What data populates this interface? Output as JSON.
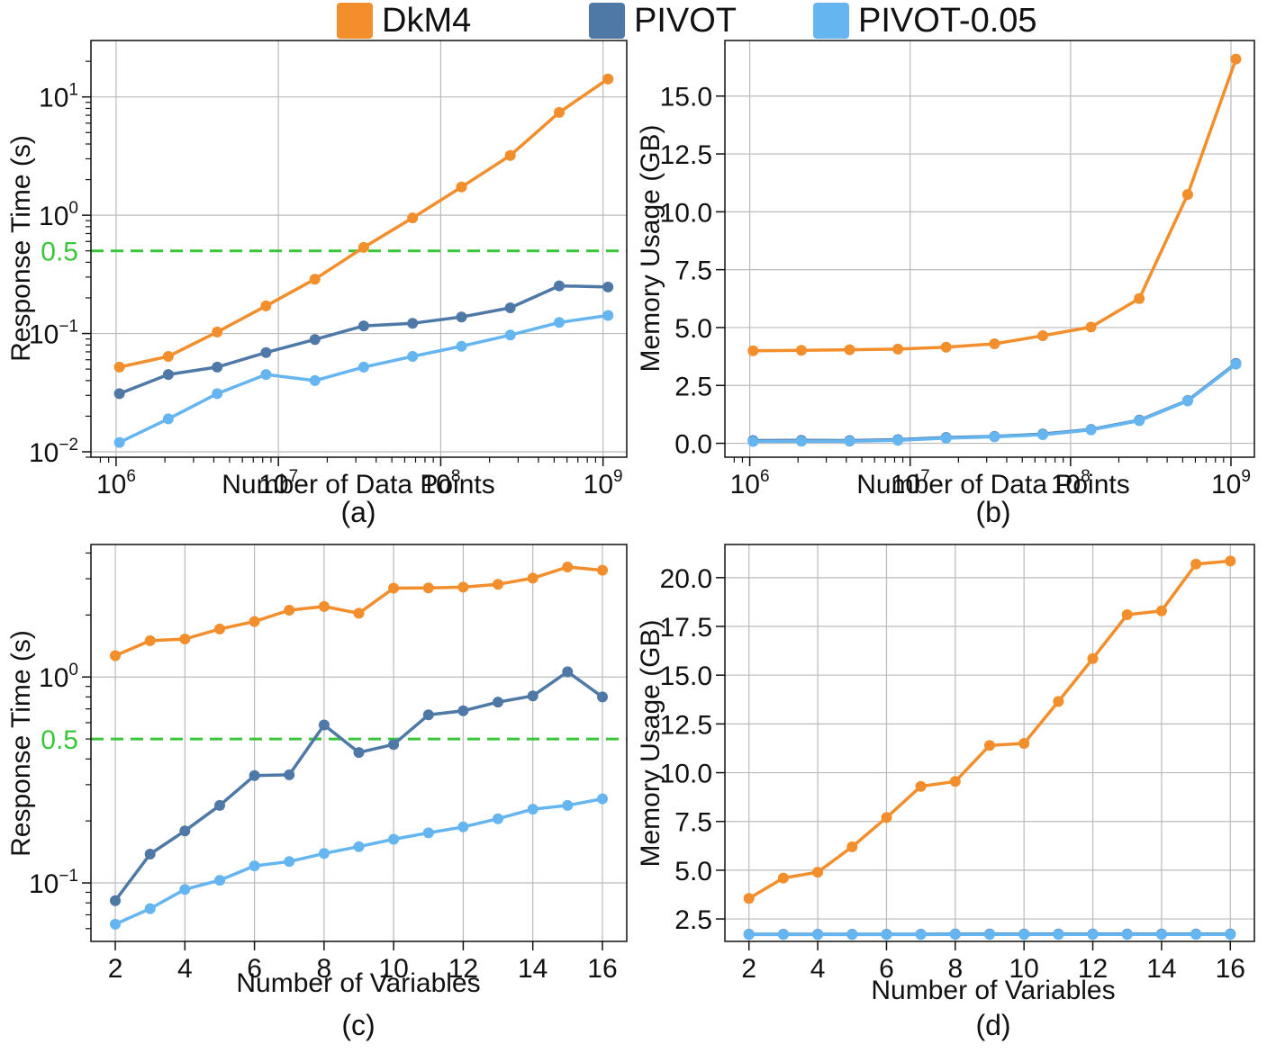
{
  "legend": {
    "items": [
      {
        "label": "DkM4",
        "color": "#f28e2b"
      },
      {
        "label": "PIVOT",
        "color": "#4e79a7"
      },
      {
        "label": "PIVOT-0.05",
        "color": "#64b5f0"
      }
    ]
  },
  "colors": {
    "threshold": "#39c639",
    "grid": "#bbbbbb",
    "axis": "#111111"
  },
  "chart_data": [
    {
      "panel": "(a)",
      "type": "line",
      "xscale": "log",
      "yscale": "log",
      "xlabel": "Number of Data Points",
      "ylabel": "Response Time (s)",
      "xlim": [
        700000,
        1400000000
      ],
      "ylim": [
        0.009,
        30
      ],
      "xticks": [
        {
          "value": 1000000,
          "base": "10",
          "exp": "6"
        },
        {
          "value": 10000000,
          "base": "10",
          "exp": "7"
        },
        {
          "value": 100000000,
          "base": "10",
          "exp": "8"
        },
        {
          "value": 1000000000,
          "base": "10",
          "exp": "9"
        }
      ],
      "yticks": [
        {
          "value": 0.01,
          "base": "10",
          "exp": "−2"
        },
        {
          "value": 0.1,
          "base": "10",
          "exp": "−1"
        },
        {
          "value": 1,
          "base": "10",
          "exp": "0"
        },
        {
          "value": 10,
          "base": "10",
          "exp": "1"
        }
      ],
      "threshold": {
        "value": 0.5,
        "label": "0.5"
      },
      "x": [
        1048576,
        2097152,
        4194304,
        8388608,
        16777216,
        33554432,
        67108864,
        134217728,
        268435456,
        536870912,
        1073741824
      ],
      "series": [
        {
          "name": "DkM4",
          "values": [
            0.052,
            0.064,
            0.103,
            0.171,
            0.288,
            0.534,
            0.95,
            1.73,
            3.2,
            7.4,
            14.2
          ]
        },
        {
          "name": "PIVOT",
          "values": [
            0.031,
            0.045,
            0.052,
            0.069,
            0.089,
            0.116,
            0.122,
            0.138,
            0.165,
            0.253,
            0.247
          ]
        },
        {
          "name": "PIVOT-0.05",
          "values": [
            0.012,
            0.019,
            0.031,
            0.045,
            0.04,
            0.052,
            0.064,
            0.078,
            0.097,
            0.124,
            0.142
          ]
        }
      ]
    },
    {
      "panel": "(b)",
      "type": "line",
      "xscale": "log",
      "yscale": "linear",
      "xlabel": "Number of Data Points",
      "ylabel": "Memory Usage (GB)",
      "xlim": [
        700000,
        1400000000
      ],
      "ylim": [
        -0.6,
        17.4
      ],
      "xticks": [
        {
          "value": 1000000,
          "base": "10",
          "exp": "6"
        },
        {
          "value": 10000000,
          "base": "10",
          "exp": "7"
        },
        {
          "value": 100000000,
          "base": "10",
          "exp": "8"
        },
        {
          "value": 1000000000,
          "base": "10",
          "exp": "9"
        }
      ],
      "yticks": [
        {
          "value": 0,
          "label": "0.0"
        },
        {
          "value": 2.5,
          "label": "2.5"
        },
        {
          "value": 5,
          "label": "5.0"
        },
        {
          "value": 7.5,
          "label": "7.5"
        },
        {
          "value": 10,
          "label": "10.0"
        },
        {
          "value": 12.5,
          "label": "12.5"
        },
        {
          "value": 15,
          "label": "15.0"
        }
      ],
      "x": [
        1048576,
        2097152,
        4194304,
        8388608,
        16777216,
        33554432,
        67108864,
        134217728,
        268435456,
        536870912,
        1073741824
      ],
      "series": [
        {
          "name": "DkM4",
          "values": [
            4.0,
            4.02,
            4.04,
            4.07,
            4.15,
            4.3,
            4.65,
            5.02,
            6.25,
            10.75,
            16.6
          ]
        },
        {
          "name": "PIVOT",
          "values": [
            0.12,
            0.13,
            0.12,
            0.16,
            0.25,
            0.3,
            0.4,
            0.6,
            1.0,
            1.85,
            3.45
          ]
        },
        {
          "name": "PIVOT-0.05",
          "values": [
            0.08,
            0.09,
            0.09,
            0.13,
            0.22,
            0.28,
            0.37,
            0.58,
            0.98,
            1.83,
            3.42
          ]
        }
      ]
    },
    {
      "panel": "(c)",
      "type": "line",
      "xscale": "linear",
      "yscale": "log",
      "xlabel": "Number of Variables",
      "ylabel": "Response Time (s)",
      "xlim": [
        1.3,
        16.7
      ],
      "ylim": [
        0.052,
        4.4
      ],
      "xticks": [
        {
          "value": 2,
          "label": "2"
        },
        {
          "value": 4,
          "label": "4"
        },
        {
          "value": 6,
          "label": "6"
        },
        {
          "value": 8,
          "label": "8"
        },
        {
          "value": 10,
          "label": "10"
        },
        {
          "value": 12,
          "label": "12"
        },
        {
          "value": 14,
          "label": "14"
        },
        {
          "value": 16,
          "label": "16"
        }
      ],
      "yticks": [
        {
          "value": 0.1,
          "base": "10",
          "exp": "−1"
        },
        {
          "value": 1,
          "base": "10",
          "exp": "0"
        }
      ],
      "threshold": {
        "value": 0.5,
        "label": "0.5"
      },
      "x": [
        2,
        3,
        4,
        5,
        6,
        7,
        8,
        9,
        10,
        11,
        12,
        13,
        14,
        15,
        16
      ],
      "series": [
        {
          "name": "DkM4",
          "values": [
            1.27,
            1.5,
            1.53,
            1.71,
            1.86,
            2.11,
            2.2,
            2.04,
            2.7,
            2.71,
            2.73,
            2.82,
            3.02,
            3.42,
            3.3
          ]
        },
        {
          "name": "PIVOT",
          "values": [
            0.082,
            0.138,
            0.179,
            0.238,
            0.332,
            0.335,
            0.585,
            0.43,
            0.47,
            0.655,
            0.685,
            0.755,
            0.81,
            1.06,
            0.8
          ]
        },
        {
          "name": "PIVOT-0.05",
          "values": [
            0.063,
            0.075,
            0.093,
            0.103,
            0.121,
            0.127,
            0.139,
            0.15,
            0.163,
            0.175,
            0.187,
            0.205,
            0.228,
            0.238,
            0.256
          ]
        }
      ]
    },
    {
      "panel": "(d)",
      "type": "line",
      "xscale": "linear",
      "yscale": "linear",
      "xlabel": "Number of Variables",
      "ylabel": "Memory Usage (GB)",
      "xlim": [
        1.3,
        16.7
      ],
      "ylim": [
        1.35,
        21.7
      ],
      "xticks": [
        {
          "value": 2,
          "label": "2"
        },
        {
          "value": 4,
          "label": "4"
        },
        {
          "value": 6,
          "label": "6"
        },
        {
          "value": 8,
          "label": "8"
        },
        {
          "value": 10,
          "label": "10"
        },
        {
          "value": 12,
          "label": "12"
        },
        {
          "value": 14,
          "label": "14"
        },
        {
          "value": 16,
          "label": "16"
        }
      ],
      "yticks": [
        {
          "value": 2.5,
          "label": "2.5"
        },
        {
          "value": 5,
          "label": "5.0"
        },
        {
          "value": 7.5,
          "label": "7.5"
        },
        {
          "value": 10,
          "label": "10.0"
        },
        {
          "value": 12.5,
          "label": "12.5"
        },
        {
          "value": 15,
          "label": "15.0"
        },
        {
          "value": 17.5,
          "label": "17.5"
        },
        {
          "value": 20,
          "label": "20.0"
        }
      ],
      "x": [
        2,
        3,
        4,
        5,
        6,
        7,
        8,
        9,
        10,
        11,
        12,
        13,
        14,
        15,
        16
      ],
      "series": [
        {
          "name": "DkM4",
          "values": [
            3.55,
            4.6,
            4.9,
            6.2,
            7.7,
            9.3,
            9.55,
            11.4,
            11.5,
            13.65,
            15.85,
            18.1,
            18.3,
            20.7,
            20.85
          ]
        },
        {
          "name": "PIVOT",
          "values": [
            1.72,
            1.72,
            1.72,
            1.72,
            1.72,
            1.72,
            1.73,
            1.73,
            1.73,
            1.73,
            1.73,
            1.73,
            1.73,
            1.73,
            1.73
          ]
        },
        {
          "name": "PIVOT-0.05",
          "values": [
            1.7,
            1.7,
            1.7,
            1.7,
            1.7,
            1.7,
            1.71,
            1.71,
            1.71,
            1.71,
            1.71,
            1.71,
            1.71,
            1.71,
            1.71
          ]
        }
      ]
    }
  ]
}
